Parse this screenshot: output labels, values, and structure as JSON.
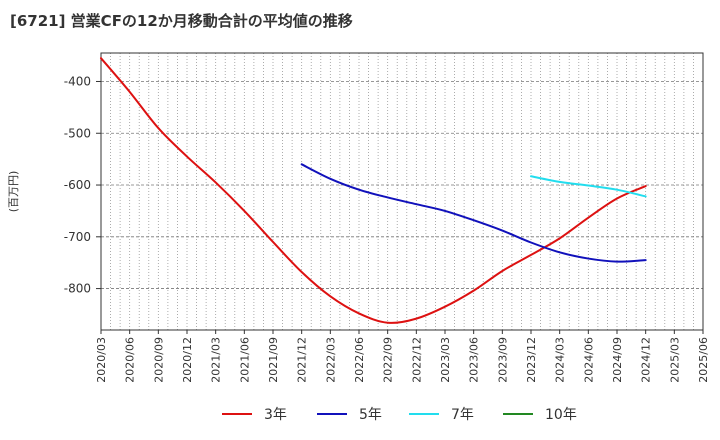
{
  "chart_data": {
    "type": "line",
    "title": "[6721]  営業CFの12か月移動合計の平均値の推移",
    "ylabel": "(百万円)",
    "xlabel": "",
    "ylim": [
      -880,
      -345
    ],
    "yticks": [
      -400,
      -500,
      -600,
      -700,
      -800
    ],
    "x_range": [
      "2020/03",
      "2025/06"
    ],
    "xticks": [
      "2020/03",
      "2020/06",
      "2020/09",
      "2020/12",
      "2021/03",
      "2021/06",
      "2021/09",
      "2021/12",
      "2022/03",
      "2022/06",
      "2022/09",
      "2022/12",
      "2023/03",
      "2023/06",
      "2023/09",
      "2023/12",
      "2024/03",
      "2024/06",
      "2024/09",
      "2024/12",
      "2025/03",
      "2025/06"
    ],
    "grid": true,
    "legend_position": "bottom",
    "series": [
      {
        "name": "3年",
        "color": "#dd1111",
        "points": [
          [
            "2020/03",
            -355
          ],
          [
            "2020/06",
            -420
          ],
          [
            "2020/09",
            -490
          ],
          [
            "2020/12",
            -545
          ],
          [
            "2021/03",
            -595
          ],
          [
            "2021/06",
            -650
          ],
          [
            "2021/09",
            -710
          ],
          [
            "2021/12",
            -768
          ],
          [
            "2022/03",
            -815
          ],
          [
            "2022/06",
            -848
          ],
          [
            "2022/09",
            -866
          ],
          [
            "2022/12",
            -858
          ],
          [
            "2023/03",
            -835
          ],
          [
            "2023/06",
            -804
          ],
          [
            "2023/09",
            -766
          ],
          [
            "2023/12",
            -735
          ],
          [
            "2024/03",
            -703
          ],
          [
            "2024/06",
            -663
          ],
          [
            "2024/09",
            -626
          ],
          [
            "2024/12",
            -602
          ]
        ]
      },
      {
        "name": "5年",
        "color": "#1111bb",
        "points": [
          [
            "2021/12",
            -560
          ],
          [
            "2022/03",
            -588
          ],
          [
            "2022/06",
            -609
          ],
          [
            "2022/09",
            -624
          ],
          [
            "2022/12",
            -637
          ],
          [
            "2023/03",
            -650
          ],
          [
            "2023/06",
            -668
          ],
          [
            "2023/09",
            -688
          ],
          [
            "2023/12",
            -711
          ],
          [
            "2024/03",
            -730
          ],
          [
            "2024/06",
            -742
          ],
          [
            "2024/09",
            -748
          ],
          [
            "2024/12",
            -745
          ]
        ]
      },
      {
        "name": "7年",
        "color": "#22ddee",
        "points": [
          [
            "2023/12",
            -583
          ],
          [
            "2024/03",
            -594
          ],
          [
            "2024/06",
            -601
          ],
          [
            "2024/09",
            -609
          ],
          [
            "2024/12",
            -622
          ]
        ]
      },
      {
        "name": "10年",
        "color": "#228822",
        "points": []
      }
    ]
  }
}
